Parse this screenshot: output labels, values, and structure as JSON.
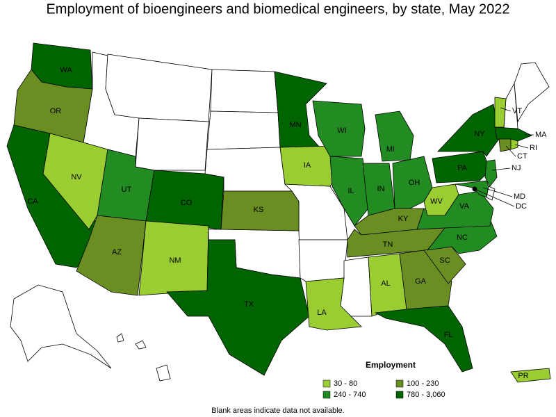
{
  "title": "Employment of bioengineers and biomedical engineers, by state, May 2022",
  "legend": {
    "title": "Employment",
    "items": [
      {
        "label": "30 - 80",
        "color": "#9acd32"
      },
      {
        "label": "100 - 230",
        "color": "#6b8e23"
      },
      {
        "label": "240 - 740",
        "color": "#228b22"
      },
      {
        "label": "780 - 3,060",
        "color": "#006400"
      }
    ]
  },
  "states": [
    {
      "label": "WA",
      "color": "#006400"
    },
    {
      "label": "OR",
      "color": "#6b8e23"
    },
    {
      "label": "CA",
      "color": "#006400"
    },
    {
      "label": "NV",
      "color": "#9acd32"
    },
    {
      "label": "UT",
      "color": "#228b22"
    },
    {
      "label": "CO",
      "color": "#006400"
    },
    {
      "label": "AZ",
      "color": "#6b8e23"
    },
    {
      "label": "NM",
      "color": "#9acd32"
    },
    {
      "label": "KS",
      "color": "#6b8e23"
    },
    {
      "label": "TX",
      "color": "#006400"
    },
    {
      "label": "MN",
      "color": "#006400"
    },
    {
      "label": "IA",
      "color": "#9acd32"
    },
    {
      "label": "WI",
      "color": "#228b22"
    },
    {
      "label": "IL",
      "color": "#228b22"
    },
    {
      "label": "IN",
      "color": "#228b22"
    },
    {
      "label": "MI",
      "color": "#228b22"
    },
    {
      "label": "OH",
      "color": "#228b22"
    },
    {
      "label": "KY",
      "color": "#6b8e23"
    },
    {
      "label": "TN",
      "color": "#6b8e23"
    },
    {
      "label": "LA",
      "color": "#9acd32"
    },
    {
      "label": "AL",
      "color": "#9acd32"
    },
    {
      "label": "GA",
      "color": "#6b8e23"
    },
    {
      "label": "FL",
      "color": "#006400"
    },
    {
      "label": "SC",
      "color": "#6b8e23"
    },
    {
      "label": "NC",
      "color": "#228b22"
    },
    {
      "label": "VA",
      "color": "#228b22"
    },
    {
      "label": "WV",
      "color": "#9acd32"
    },
    {
      "label": "PA",
      "color": "#006400"
    },
    {
      "label": "NY",
      "color": "#006400"
    },
    {
      "label": "VT",
      "color": "#9acd32"
    },
    {
      "label": "MA",
      "color": "#006400"
    },
    {
      "label": "CT",
      "color": "#6b8e23"
    },
    {
      "label": "RI",
      "color": "#9acd32"
    },
    {
      "label": "NJ",
      "color": "#228b22"
    },
    {
      "label": "MD",
      "color": "#228b22"
    },
    {
      "label": "DC",
      "color": "#006400"
    },
    {
      "label": "PR",
      "color": "#9acd32"
    }
  ],
  "footnote": "Blank areas indicate data not available."
}
